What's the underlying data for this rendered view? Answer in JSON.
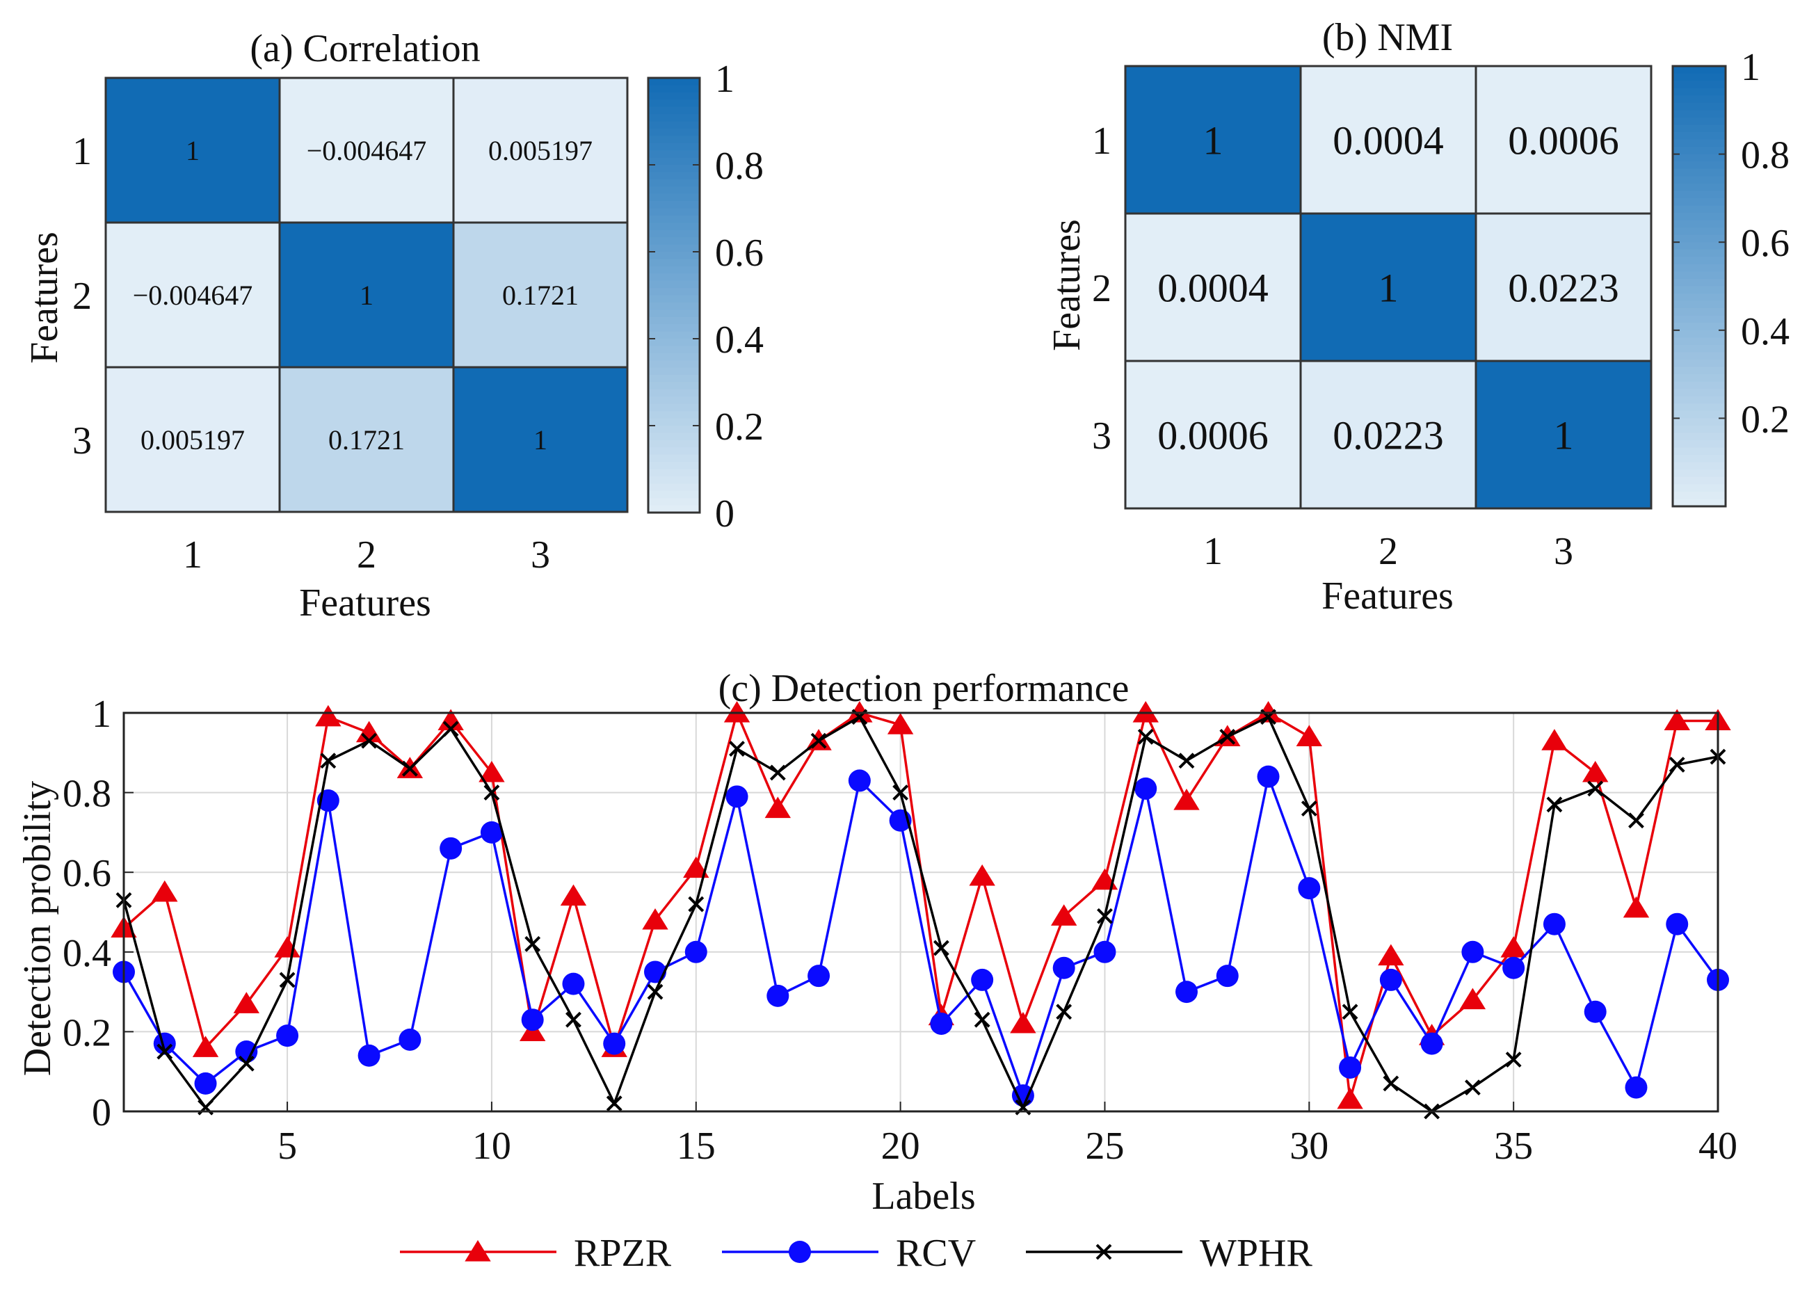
{
  "chart_data": [
    {
      "type": "heatmap",
      "title": "(a) Correlation",
      "xlabel": "Features",
      "ylabel": "Features",
      "x_ticks": [
        "1",
        "2",
        "3"
      ],
      "y_ticks": [
        "1",
        "2",
        "3"
      ],
      "cells": [
        [
          "1",
          "−0.004647",
          "0.005197"
        ],
        [
          "−0.004647",
          "1",
          "0.1721"
        ],
        [
          "0.005197",
          "0.1721",
          "1"
        ]
      ],
      "values": [
        [
          1,
          -0.004647,
          0.005197
        ],
        [
          -0.004647,
          1,
          0.1721
        ],
        [
          0.005197,
          0.1721,
          1
        ]
      ],
      "colorbar": {
        "range": [
          0,
          1
        ],
        "ticks": [
          "0",
          "0.2",
          "0.4",
          "0.6",
          "0.8",
          "1"
        ],
        "tick_values": [
          0,
          0.2,
          0.4,
          0.6,
          0.8,
          1
        ]
      }
    },
    {
      "type": "heatmap",
      "title": "(b) NMI",
      "xlabel": "Features",
      "ylabel": "Features",
      "x_ticks": [
        "1",
        "2",
        "3"
      ],
      "y_ticks": [
        "1",
        "2",
        "3"
      ],
      "cells": [
        [
          "1",
          "0.0004",
          "0.0006"
        ],
        [
          "0.0004",
          "1",
          "0.0223"
        ],
        [
          "0.0006",
          "0.0223",
          "1"
        ]
      ],
      "values": [
        [
          1,
          0.0004,
          0.0006
        ],
        [
          0.0004,
          1,
          0.0223
        ],
        [
          0.0006,
          0.0223,
          1
        ]
      ],
      "colorbar": {
        "range": [
          0,
          1
        ],
        "ticks": [
          "0.2",
          "0.4",
          "0.6",
          "0.8",
          "1"
        ],
        "tick_values": [
          0.2,
          0.4,
          0.6,
          0.8,
          1
        ]
      }
    },
    {
      "type": "line",
      "title": "(c) Detection performance",
      "xlabel": "Labels",
      "ylabel": "Detection probility",
      "xlim": [
        1,
        40
      ],
      "ylim": [
        0,
        1
      ],
      "x_ticks": [
        5,
        10,
        15,
        20,
        25,
        30,
        35,
        40
      ],
      "y_ticks": [
        0,
        0.2,
        0.4,
        0.6,
        0.8,
        1
      ],
      "y_tick_labels": [
        "0",
        "0.2",
        "0.4",
        "0.6",
        "0.8",
        "1"
      ],
      "grid": true,
      "legend_position": "bottom",
      "x": [
        1,
        2,
        3,
        4,
        5,
        6,
        7,
        8,
        9,
        10,
        11,
        12,
        13,
        14,
        15,
        16,
        17,
        18,
        19,
        20,
        21,
        22,
        23,
        24,
        25,
        26,
        27,
        28,
        29,
        30,
        31,
        32,
        33,
        34,
        35,
        36,
        37,
        38,
        39,
        40
      ],
      "series": [
        {
          "name": "RPZR",
          "color": "#e8000b",
          "marker": "triangle",
          "values": [
            0.46,
            0.55,
            0.16,
            0.27,
            0.41,
            0.99,
            0.95,
            0.86,
            0.98,
            0.85,
            0.2,
            0.54,
            0.16,
            0.48,
            0.61,
            1.0,
            0.76,
            0.93,
            1.0,
            0.97,
            0.24,
            0.59,
            0.22,
            0.49,
            0.58,
            1.0,
            0.78,
            0.94,
            1.0,
            0.94,
            0.03,
            0.39,
            0.19,
            0.28,
            0.41,
            0.93,
            0.85,
            0.51,
            0.98,
            0.98
          ]
        },
        {
          "name": "RCV",
          "color": "#0a0aff",
          "marker": "circle",
          "values": [
            0.35,
            0.17,
            0.07,
            0.15,
            0.19,
            0.78,
            0.14,
            0.18,
            0.66,
            0.7,
            0.23,
            0.32,
            0.17,
            0.35,
            0.4,
            0.79,
            0.29,
            0.34,
            0.83,
            0.73,
            0.22,
            0.33,
            0.04,
            0.36,
            0.4,
            0.81,
            0.3,
            0.34,
            0.84,
            0.56,
            0.11,
            0.33,
            0.17,
            0.4,
            0.36,
            0.47,
            0.25,
            0.06,
            0.47,
            0.33
          ]
        },
        {
          "name": "WPHR",
          "color": "#000000",
          "marker": "x",
          "values": [
            0.53,
            0.15,
            0.01,
            0.12,
            0.33,
            0.88,
            0.93,
            0.86,
            0.96,
            0.8,
            0.42,
            0.23,
            0.02,
            0.3,
            0.52,
            0.91,
            0.85,
            0.93,
            0.99,
            0.8,
            0.41,
            0.23,
            0.01,
            0.25,
            0.49,
            0.94,
            0.88,
            0.94,
            0.99,
            0.76,
            0.25,
            0.07,
            0.0,
            0.06,
            0.13,
            0.77,
            0.81,
            0.73,
            0.87,
            0.89
          ]
        }
      ]
    }
  ]
}
